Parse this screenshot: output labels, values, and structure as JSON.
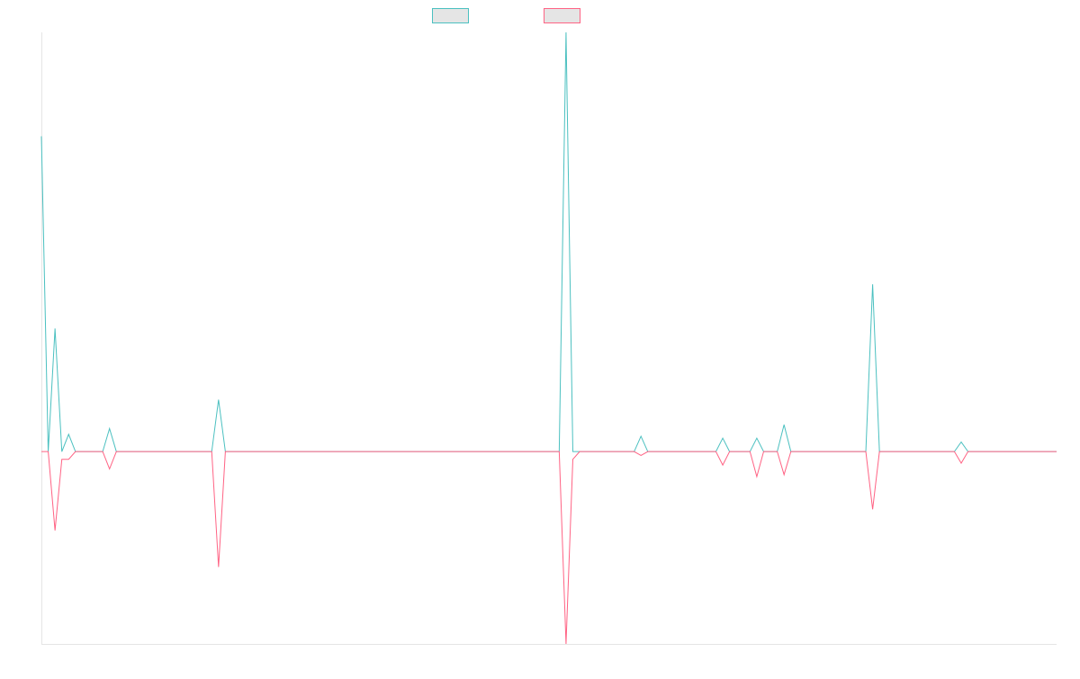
{
  "chart_data": {
    "type": "line",
    "title": "",
    "xlabel": "",
    "ylabel": "",
    "x_count": 150,
    "ylim": [
      -100,
      218
    ],
    "grid": false,
    "legend": "top-center",
    "series": [
      {
        "color": "#4bc0c0",
        "points": [
          [
            0,
            164
          ],
          [
            1,
            0
          ],
          [
            2,
            64
          ],
          [
            3,
            0
          ],
          [
            4,
            9
          ],
          [
            5,
            0
          ],
          [
            6,
            0
          ],
          [
            7,
            0
          ],
          [
            8,
            0
          ],
          [
            9,
            0
          ],
          [
            10,
            12
          ],
          [
            11,
            0
          ],
          [
            12,
            0
          ],
          [
            13,
            0
          ],
          [
            14,
            0
          ],
          [
            15,
            0
          ],
          [
            16,
            0
          ],
          [
            17,
            0
          ],
          [
            18,
            0
          ],
          [
            19,
            0
          ],
          [
            20,
            0
          ],
          [
            21,
            0
          ],
          [
            22,
            0
          ],
          [
            23,
            0
          ],
          [
            24,
            0
          ],
          [
            25,
            0
          ],
          [
            26,
            27
          ],
          [
            27,
            0
          ],
          [
            76,
            0
          ],
          [
            77,
            218
          ],
          [
            78,
            0
          ],
          [
            79,
            0
          ],
          [
            80,
            0
          ],
          [
            87,
            0
          ],
          [
            88,
            8
          ],
          [
            89,
            0
          ],
          [
            99,
            0
          ],
          [
            100,
            7
          ],
          [
            101,
            0
          ],
          [
            104,
            0
          ],
          [
            105,
            7
          ],
          [
            106,
            0
          ],
          [
            108,
            0
          ],
          [
            109,
            14
          ],
          [
            110,
            0
          ],
          [
            121,
            0
          ],
          [
            122,
            87
          ],
          [
            123,
            0
          ],
          [
            134,
            0
          ],
          [
            135,
            5
          ],
          [
            136,
            0
          ],
          [
            262,
            0
          ]
        ]
      },
      {
        "color": "#ff6384",
        "points": [
          [
            0,
            0
          ],
          [
            1,
            0
          ],
          [
            2,
            -41
          ],
          [
            3,
            -4
          ],
          [
            4,
            -4
          ],
          [
            5,
            0
          ],
          [
            6,
            0
          ],
          [
            7,
            0
          ],
          [
            8,
            0
          ],
          [
            9,
            0
          ],
          [
            10,
            -9
          ],
          [
            11,
            0
          ],
          [
            12,
            0
          ],
          [
            13,
            0
          ],
          [
            14,
            0
          ],
          [
            15,
            0
          ],
          [
            16,
            0
          ],
          [
            17,
            0
          ],
          [
            18,
            0
          ],
          [
            19,
            0
          ],
          [
            20,
            0
          ],
          [
            21,
            0
          ],
          [
            22,
            0
          ],
          [
            23,
            0
          ],
          [
            24,
            0
          ],
          [
            25,
            0
          ],
          [
            26,
            -60
          ],
          [
            27,
            0
          ],
          [
            76,
            0
          ],
          [
            77,
            -100
          ],
          [
            78,
            -4
          ],
          [
            79,
            0
          ],
          [
            80,
            0
          ],
          [
            87,
            0
          ],
          [
            88,
            -2
          ],
          [
            89,
            0
          ],
          [
            99,
            0
          ],
          [
            100,
            -7
          ],
          [
            101,
            0
          ],
          [
            104,
            0
          ],
          [
            105,
            -13
          ],
          [
            106,
            0
          ],
          [
            108,
            0
          ],
          [
            109,
            -12
          ],
          [
            110,
            0
          ],
          [
            121,
            0
          ],
          [
            122,
            -30
          ],
          [
            123,
            0
          ],
          [
            134,
            0
          ],
          [
            135,
            -6
          ],
          [
            136,
            0
          ],
          [
            262,
            0
          ]
        ]
      }
    ]
  }
}
